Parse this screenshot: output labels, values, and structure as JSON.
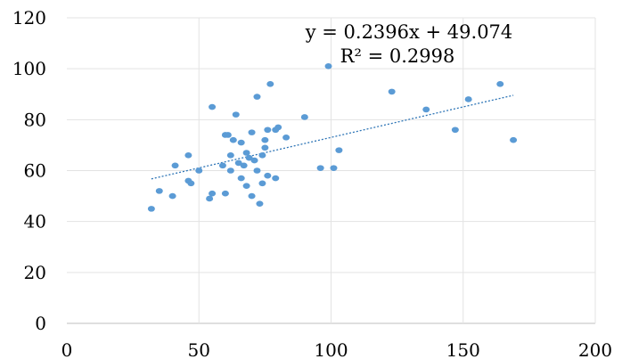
{
  "chart_data": {
    "type": "scatter",
    "title": "",
    "xlabel": "",
    "ylabel": "",
    "xlim": [
      0,
      200
    ],
    "ylim": [
      0,
      120
    ],
    "x_ticks": [
      "0",
      "50",
      "100",
      "150",
      "200"
    ],
    "y_ticks": [
      "0",
      "20",
      "40",
      "60",
      "80",
      "100",
      "120"
    ],
    "grid": true,
    "legend": "none",
    "marker_color": "#5b9bd5",
    "trendline": {
      "type": "linear",
      "slope": 0.2396,
      "intercept": 49.074,
      "x_range": [
        32,
        169
      ],
      "equation_label": "y = 0.2396x + 49.074",
      "r2_label": "R² = 0.2998",
      "color": "#2e75b6"
    },
    "series": [
      {
        "points": [
          [
            32,
            45
          ],
          [
            35,
            52
          ],
          [
            40,
            50
          ],
          [
            41,
            62
          ],
          [
            46,
            66
          ],
          [
            46,
            56
          ],
          [
            47,
            55
          ],
          [
            50,
            60
          ],
          [
            54,
            49
          ],
          [
            55,
            51
          ],
          [
            55,
            85
          ],
          [
            59,
            62
          ],
          [
            60,
            74
          ],
          [
            60,
            51
          ],
          [
            61,
            74
          ],
          [
            62,
            66
          ],
          [
            62,
            60
          ],
          [
            63,
            72
          ],
          [
            64,
            82
          ],
          [
            65,
            63
          ],
          [
            66,
            71
          ],
          [
            66,
            57
          ],
          [
            67,
            62
          ],
          [
            68,
            67
          ],
          [
            68,
            54
          ],
          [
            69,
            65
          ],
          [
            70,
            50
          ],
          [
            70,
            75
          ],
          [
            71,
            64
          ],
          [
            72,
            89
          ],
          [
            72,
            60
          ],
          [
            73,
            47
          ],
          [
            74,
            55
          ],
          [
            74,
            66
          ],
          [
            75,
            72
          ],
          [
            75,
            69
          ],
          [
            76,
            76
          ],
          [
            76,
            58
          ],
          [
            77,
            94
          ],
          [
            79,
            57
          ],
          [
            79,
            76
          ],
          [
            80,
            77
          ],
          [
            83,
            73
          ],
          [
            90,
            81
          ],
          [
            96,
            61
          ],
          [
            99,
            101
          ],
          [
            101,
            61
          ],
          [
            103,
            68
          ],
          [
            123,
            91
          ],
          [
            136,
            84
          ],
          [
            147,
            76
          ],
          [
            152,
            88
          ],
          [
            164,
            94
          ],
          [
            169,
            72
          ]
        ]
      }
    ]
  }
}
